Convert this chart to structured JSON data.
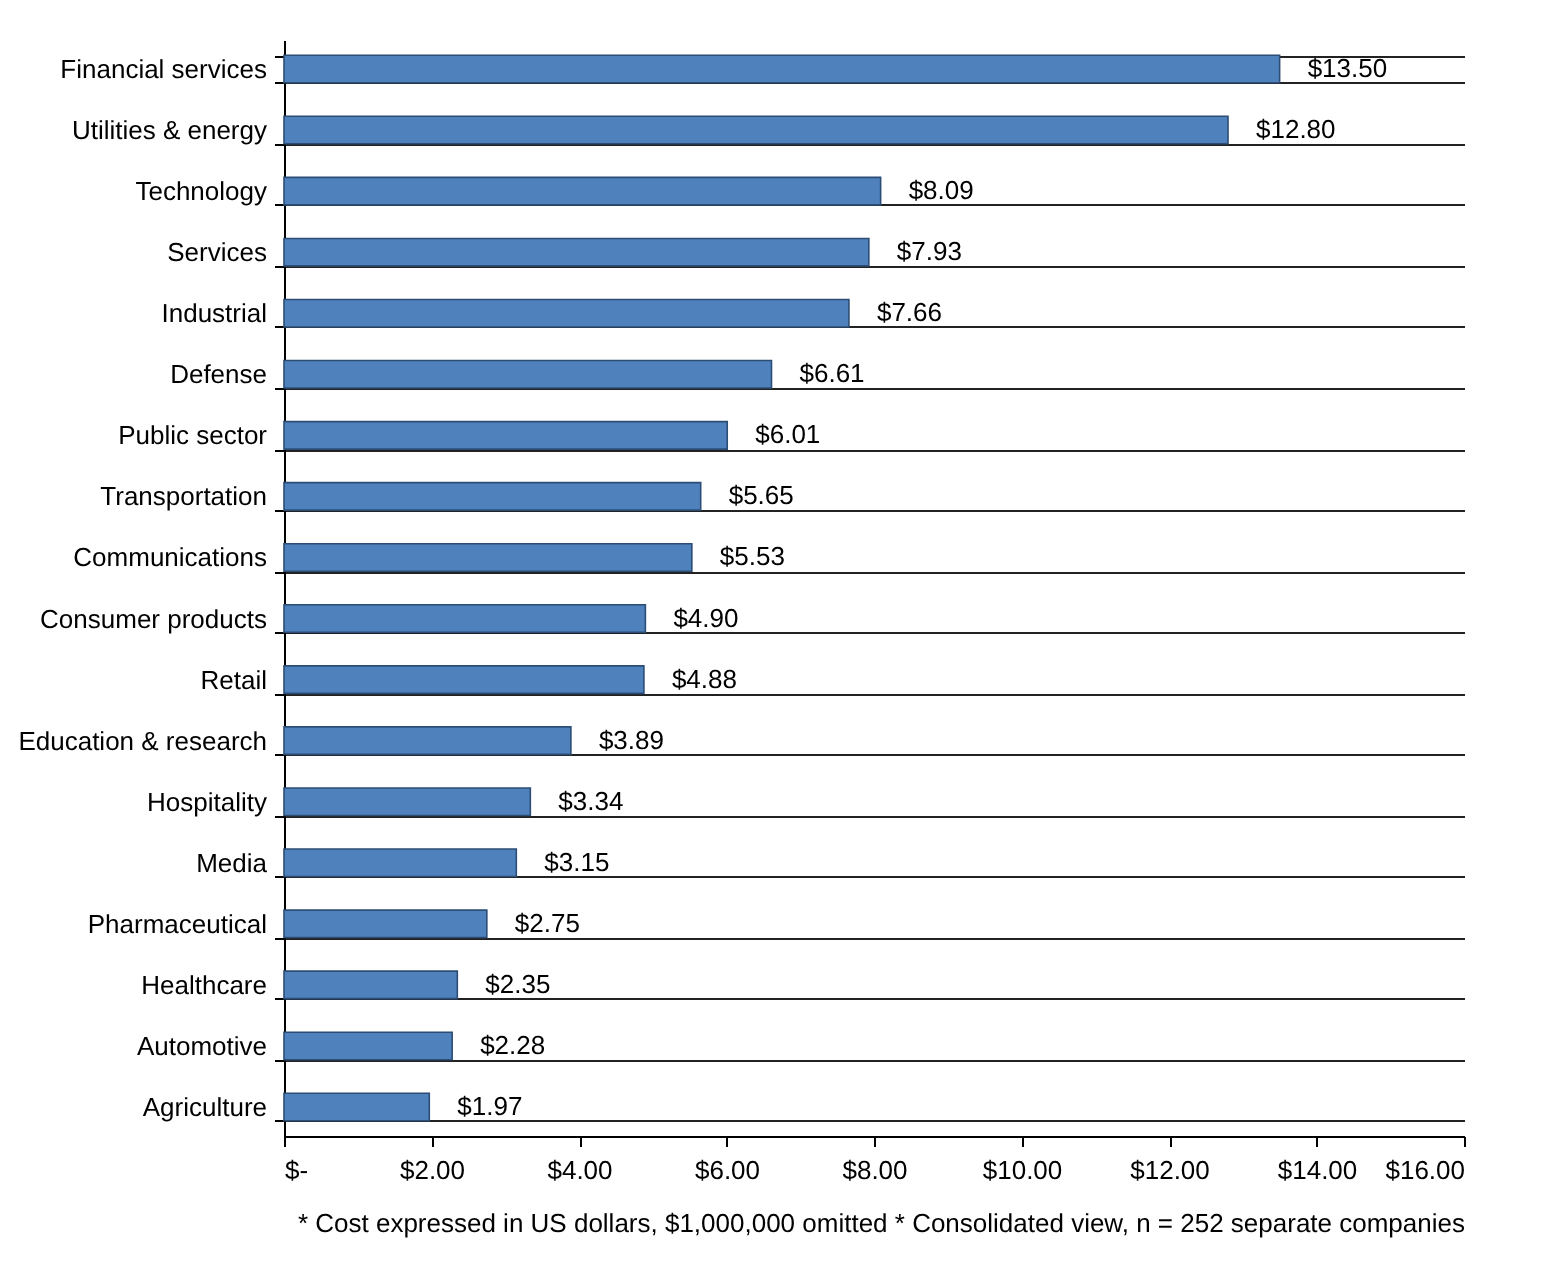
{
  "chart_data": {
    "type": "bar",
    "orientation": "horizontal",
    "categories": [
      "Financial services",
      "Utilities & energy",
      "Technology",
      "Services",
      "Industrial",
      "Defense",
      "Public sector",
      "Transportation",
      "Communications",
      "Consumer products",
      "Retail",
      "Education & research",
      "Hospitality",
      "Media",
      "Pharmaceutical",
      "Healthcare",
      "Automotive",
      "Agriculture"
    ],
    "values": [
      13.5,
      12.8,
      8.09,
      7.93,
      7.66,
      6.61,
      6.01,
      5.65,
      5.53,
      4.9,
      4.88,
      3.89,
      3.34,
      3.15,
      2.75,
      2.35,
      2.28,
      1.97
    ],
    "value_labels": [
      "$13.50",
      "$12.80",
      "$8.09",
      "$7.93",
      "$7.66",
      "$6.61",
      "$6.01",
      "$5.65",
      "$5.53",
      "$4.90",
      "$4.88",
      "$3.89",
      "$3.34",
      "$3.15",
      "$2.75",
      "$2.35",
      "$2.28",
      "$1.97"
    ],
    "color": "#4f81bd",
    "xlim": [
      0,
      16
    ],
    "xticks": [
      {
        "value": 0,
        "label": "$-"
      },
      {
        "value": 2,
        "label": "$2.00"
      },
      {
        "value": 4,
        "label": "$4.00"
      },
      {
        "value": 6,
        "label": "$6.00"
      },
      {
        "value": 8,
        "label": "$8.00"
      },
      {
        "value": 10,
        "label": "$10.00"
      },
      {
        "value": 12,
        "label": "$12.00"
      },
      {
        "value": 14,
        "label": "$14.00"
      },
      {
        "value": 16,
        "label": "$16.00"
      }
    ],
    "grid": "y",
    "annotations": [
      "* Cost expressed in US dollars, $1,000,000 omitted * Consolidated view, n = 252 separate companies"
    ]
  }
}
